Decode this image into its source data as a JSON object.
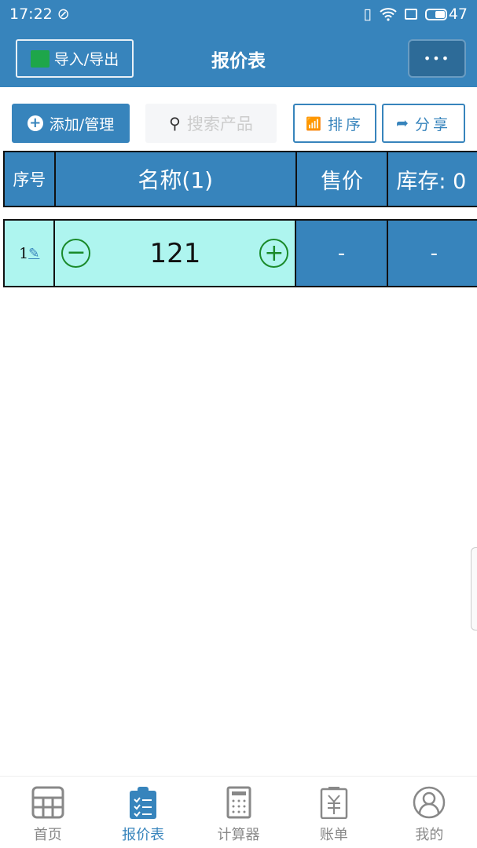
{
  "status": {
    "time": "17:22",
    "battery": "47"
  },
  "header": {
    "import_export": "导入/导出",
    "title": "报价表",
    "more": "•••"
  },
  "toolbar": {
    "add": "添加/管理",
    "search_placeholder": "搜索产品",
    "sort": "排序",
    "share": "分享"
  },
  "table": {
    "headers": [
      "序号",
      "名称(1)",
      "售价",
      "库存: 0"
    ],
    "rows": [
      {
        "index": "1",
        "name": "121",
        "price": "-",
        "stock": "-"
      }
    ]
  },
  "nav": {
    "items": [
      {
        "label": "首页",
        "icon": "grid-icon"
      },
      {
        "label": "报价表",
        "icon": "clipboard-icon",
        "active": true
      },
      {
        "label": "计算器",
        "icon": "calculator-icon"
      },
      {
        "label": "账单",
        "icon": "bill-icon"
      },
      {
        "label": "我的",
        "icon": "user-icon"
      }
    ]
  },
  "colors": {
    "primary": "#3784bc",
    "row_highlight": "#aef5ef",
    "stepper": "#1a8a2a"
  }
}
